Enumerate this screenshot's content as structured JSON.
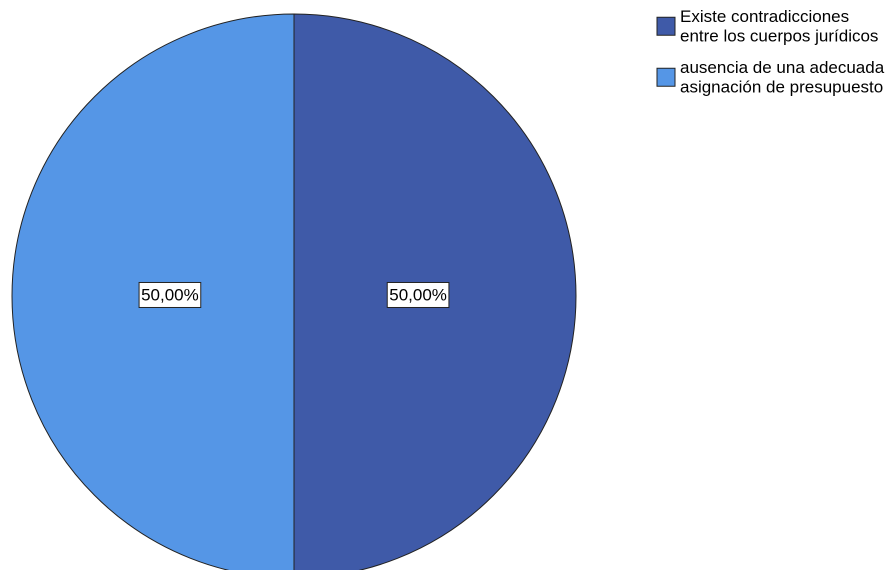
{
  "chart_data": {
    "type": "pie",
    "categories": [
      "Existe contradicciones entre los cuerpos jurídicos",
      "ausencia de una adecuada asignación de presupuesto"
    ],
    "values": [
      50,
      50
    ],
    "value_labels": [
      "50,00%",
      "50,00%"
    ],
    "colors": [
      "#3f5aa8",
      "#5596e6"
    ],
    "legend": "right"
  }
}
